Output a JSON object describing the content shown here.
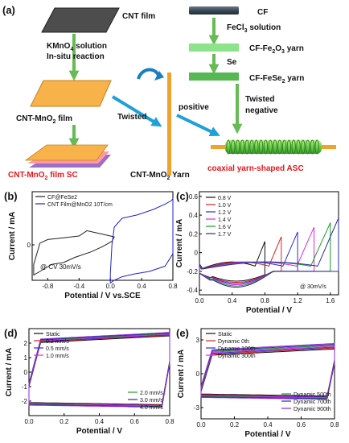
{
  "panel_a": {
    "label": "(a)",
    "cnt_film": "CNT film",
    "kmno4_line1": "KMnO",
    "kmno4_sub": "4",
    "kmno4_line1_rest": " solution",
    "kmno4_line2": "In-situ  reaction",
    "cnt_mno2_film_main": "CNT-MnO",
    "cnt_mno2_film_sub": "2",
    "cnt_mno2_film_rest": "  film",
    "twisted": "Twisted",
    "positive": "positive",
    "sc_label_main": "CNT-MnO",
    "sc_label_sub": "2",
    "sc_label_rest": " film SC",
    "yarn_label_main": "CNT-MnO",
    "yarn_label_sub": "2",
    "yarn_label_rest": " Yarn",
    "asc_label": "coaxial yarn-shaped ASC",
    "cf": "CF",
    "fecl3_main": "FeCl",
    "fecl3_sub": "3",
    "fecl3_rest": " solution",
    "cf_fe2o3_main": "CF-Fe",
    "cf_fe2o3_sub1": "2",
    "cf_fe2o3_mid": "O",
    "cf_fe2o3_sub2": "3",
    "cf_fe2o3_rest": " yarn",
    "se": "Se",
    "cf_fese2_main": "CF-FeSe",
    "cf_fese2_sub": "2",
    "cf_fese2_rest": " yarn",
    "twisted_negative_1": "Twisted",
    "twisted_negative_2": "negative",
    "colors": {
      "film_orange": "#f7b24a",
      "yarn_orange": "#f0a22a",
      "arrow_green": "#66bb55",
      "arrow_blue": "#1ea0d8",
      "red_text": "#e8151b",
      "purple": "#9b6fc8",
      "cf_dark": "#3b4a57",
      "fe2o3_green": "#8de38a",
      "fese2_green": "#55b853"
    }
  },
  "chart_data": [
    {
      "panel": "(b)",
      "type": "line",
      "xlabel": "Potential / V vs.SCE",
      "ylabel": "Current / mA",
      "xlim": [
        -1.0,
        0.8
      ],
      "ylim": [
        -0.4,
        0.6
      ],
      "xticks": [
        -0.8,
        -0.4,
        0.0,
        0.4,
        0.8
      ],
      "yticks": [
        0.0
      ],
      "annotation": "@ CV 30mV/s",
      "legend_position": "top-left",
      "series": [
        {
          "name": "CF@FeSe2",
          "color": "#222222",
          "points": [
            [
              -0.98,
              -0.22
            ],
            [
              -0.9,
              0.02
            ],
            [
              -0.8,
              0.06
            ],
            [
              -0.6,
              0.08
            ],
            [
              -0.4,
              0.1
            ],
            [
              -0.3,
              0.16
            ],
            [
              -0.2,
              0.14
            ],
            [
              -0.1,
              0.12
            ],
            [
              0.0,
              0.1
            ],
            [
              0.05,
              0.09
            ],
            [
              0.02,
              0.04
            ],
            [
              -0.1,
              -0.02
            ],
            [
              -0.25,
              -0.08
            ],
            [
              -0.45,
              -0.14
            ],
            [
              -0.6,
              -0.2
            ],
            [
              -0.75,
              -0.22
            ],
            [
              -0.9,
              -0.3
            ],
            [
              -0.98,
              -0.34
            ]
          ]
        },
        {
          "name": "CNT Film@MnO2  10T/cm",
          "color": "#2222cc",
          "points": [
            [
              0.0,
              -0.33
            ],
            [
              0.02,
              0.0
            ],
            [
              0.05,
              0.2
            ],
            [
              0.15,
              0.3
            ],
            [
              0.35,
              0.34
            ],
            [
              0.55,
              0.4
            ],
            [
              0.7,
              0.46
            ],
            [
              0.78,
              0.5
            ],
            [
              0.8,
              0.52
            ],
            [
              0.8,
              -0.1
            ],
            [
              0.7,
              -0.24
            ],
            [
              0.5,
              -0.3
            ],
            [
              0.3,
              -0.33
            ],
            [
              0.15,
              -0.36
            ],
            [
              0.05,
              -0.4
            ],
            [
              0.0,
              -0.43
            ]
          ]
        }
      ]
    },
    {
      "panel": "(c)",
      "type": "line",
      "xlabel": "Potential / V",
      "ylabel": "Current / mA",
      "xlim": [
        0.0,
        1.7
      ],
      "ylim": [
        -0.45,
        0.65
      ],
      "xticks": [
        0.0,
        0.4,
        0.8,
        1.2,
        1.6
      ],
      "yticks": [
        -0.4,
        -0.2,
        0.0,
        0.2,
        0.4,
        0.6
      ],
      "annotation": "@ 30mV/s",
      "legend_position": "top-left",
      "series": [
        {
          "name": "0.8 V",
          "color": "#111111",
          "vmax": 0.8
        },
        {
          "name": "1.0 V",
          "color": "#e02020",
          "vmax": 1.0
        },
        {
          "name": "1.2 V",
          "color": "#2a2adc",
          "vmax": 1.2
        },
        {
          "name": "1.4 V",
          "color": "#e02ad8",
          "vmax": 1.4
        },
        {
          "name": "1.6 V",
          "color": "#1a9a2a",
          "vmax": 1.6
        },
        {
          "name": "1.7 V",
          "color": "#2b2b9a",
          "vmax": 1.7
        }
      ]
    },
    {
      "panel": "(d)",
      "type": "line",
      "xlabel": "Potential / V",
      "ylabel": "Current / mA",
      "xlim": [
        0.0,
        0.8
      ],
      "ylim": [
        -3,
        3
      ],
      "xticks": [
        0.0,
        0.2,
        0.4,
        0.6,
        0.8
      ],
      "yticks": [
        -2,
        -1,
        0,
        1,
        2
      ],
      "legend_position": "top-left and bottom-right",
      "series": [
        {
          "name": "Static",
          "color": "#111111"
        },
        {
          "name": "0.2 mm/s",
          "color": "#e02020"
        },
        {
          "name": "0.5 mm/s",
          "color": "#2a2adc"
        },
        {
          "name": "1.0 mm/s",
          "color": "#e02ad8"
        },
        {
          "name": "2.0 mm/s",
          "color": "#1a9a2a"
        },
        {
          "name": "3.0 mm/s",
          "color": "#2b2b9a"
        },
        {
          "name": "4.0 mm/s",
          "color": "#8a2ad8"
        }
      ]
    },
    {
      "panel": "(e)",
      "type": "line",
      "xlabel": "Potential / V",
      "ylabel": "Current / mA",
      "xlim": [
        0.0,
        0.8
      ],
      "ylim": [
        -4,
        4
      ],
      "xticks": [
        0.0,
        0.2,
        0.4,
        0.6,
        0.8
      ],
      "yticks": [
        -3,
        0,
        3
      ],
      "legend_position": "top-left and bottom-right",
      "series": [
        {
          "name": "Static",
          "color": "#111111"
        },
        {
          "name": "Dynamic 0th",
          "color": "#e02020"
        },
        {
          "name": "Dynamic 100th",
          "color": "#2a2adc"
        },
        {
          "name": "Dynamic 300th",
          "color": "#e02ad8"
        },
        {
          "name": "Dynamic 500th",
          "color": "#1a9a2a"
        },
        {
          "name": "Dynamic 700th",
          "color": "#2b2b9a"
        },
        {
          "name": "Dynamic 900th",
          "color": "#8a2ad8"
        }
      ]
    }
  ]
}
